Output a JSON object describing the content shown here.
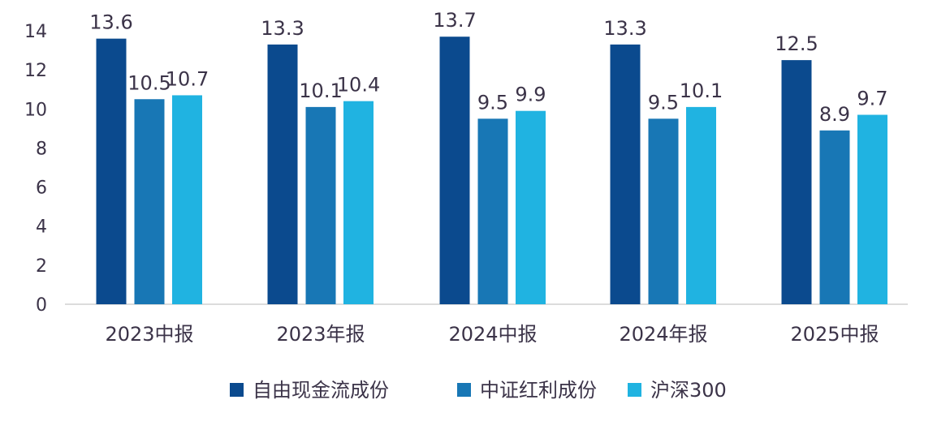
{
  "chart_data": {
    "type": "bar",
    "title": "",
    "xlabel": "",
    "ylabel": "",
    "ylim": [
      0,
      14
    ],
    "yticks": [
      0,
      2,
      4,
      6,
      8,
      10,
      12,
      14
    ],
    "grid": false,
    "legend_position": "bottom",
    "categories": [
      "2023中报",
      "2023年报",
      "2024中报",
      "2024年报",
      "2025中报"
    ],
    "series": [
      {
        "name": "自由现金流成份",
        "color": "#0b4a8e",
        "values": [
          13.6,
          13.3,
          13.7,
          13.3,
          12.5
        ]
      },
      {
        "name": "中证红利成份",
        "color": "#1877b5",
        "values": [
          10.5,
          10.1,
          9.5,
          9.5,
          8.9
        ]
      },
      {
        "name": "沪深300",
        "color": "#20b3e1",
        "values": [
          10.7,
          10.4,
          9.9,
          10.1,
          9.7
        ]
      }
    ]
  }
}
